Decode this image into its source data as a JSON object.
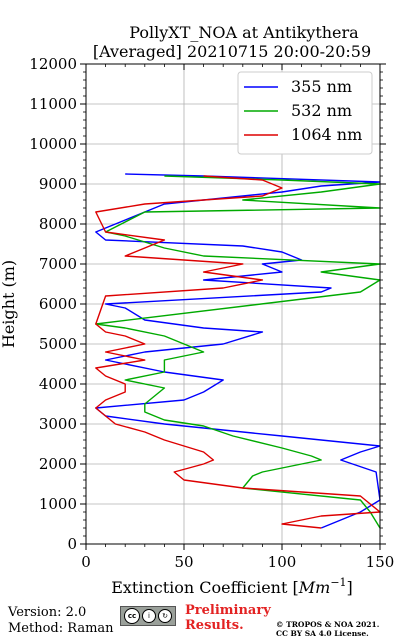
{
  "chart_data": {
    "type": "line",
    "title_line1": "PollyXT_NOA at Antikythera",
    "title_line2": "[Averaged] 20210715 20:00-20:59",
    "xlabel": "Extinction Coefficient [",
    "xlabel_unit_base": "Mm",
    "xlabel_unit_exp": "−1",
    "xlabel_close": "]",
    "ylabel": "Height (m)",
    "xlim": [
      0,
      150
    ],
    "ylim": [
      0,
      12000
    ],
    "x_ticks": [
      0,
      50,
      100,
      150
    ],
    "x_tick_labels": [
      "0",
      "50",
      "100",
      "150"
    ],
    "y_ticks": [
      0,
      1000,
      2000,
      3000,
      4000,
      5000,
      6000,
      7000,
      8000,
      9000,
      10000,
      11000,
      12000
    ],
    "y_tick_labels": [
      "0",
      "1000",
      "2000",
      "3000",
      "4000",
      "5000",
      "6000",
      "7000",
      "8000",
      "9000",
      "10000",
      "11000",
      "12000"
    ],
    "grid": true,
    "legend_position": "top-right",
    "series": [
      {
        "name": "355 nm",
        "color": "#0000ff",
        "points": [
          [
            120,
            400
          ],
          [
            140,
            800
          ],
          [
            150,
            1100
          ],
          [
            148,
            1800
          ],
          [
            130,
            2100
          ],
          [
            140,
            2300
          ],
          [
            150,
            2450
          ],
          [
            100,
            2700
          ],
          [
            70,
            2850
          ],
          [
            40,
            3000
          ],
          [
            10,
            3200
          ],
          [
            5,
            3400
          ],
          [
            50,
            3600
          ],
          [
            60,
            3800
          ],
          [
            70,
            4100
          ],
          [
            40,
            4300
          ],
          [
            10,
            4600
          ],
          [
            30,
            4800
          ],
          [
            70,
            5000
          ],
          [
            90,
            5300
          ],
          [
            60,
            5400
          ],
          [
            30,
            5600
          ],
          [
            20,
            5900
          ],
          [
            10,
            6000
          ],
          [
            120,
            6300
          ],
          [
            125,
            6400
          ],
          [
            60,
            6600
          ],
          [
            100,
            6800
          ],
          [
            90,
            7000
          ],
          [
            110,
            7100
          ],
          [
            100,
            7300
          ],
          [
            80,
            7450
          ],
          [
            10,
            7600
          ],
          [
            5,
            7800
          ],
          [
            40,
            8500
          ],
          [
            100,
            8800
          ],
          [
            120,
            8950
          ],
          [
            150,
            9050
          ],
          [
            60,
            9200
          ],
          [
            20,
            9250
          ]
        ]
      },
      {
        "name": "532 nm",
        "color": "#00aa00",
        "points": [
          [
            150,
            400
          ],
          [
            145,
            800
          ],
          [
            140,
            1100
          ],
          [
            80,
            1400
          ],
          [
            85,
            1700
          ],
          [
            90,
            1800
          ],
          [
            110,
            2000
          ],
          [
            120,
            2100
          ],
          [
            115,
            2200
          ],
          [
            100,
            2400
          ],
          [
            75,
            2700
          ],
          [
            60,
            2950
          ],
          [
            40,
            3100
          ],
          [
            30,
            3300
          ],
          [
            30,
            3500
          ],
          [
            35,
            3700
          ],
          [
            40,
            3900
          ],
          [
            20,
            4100
          ],
          [
            40,
            4300
          ],
          [
            40,
            4600
          ],
          [
            60,
            4800
          ],
          [
            50,
            5000
          ],
          [
            40,
            5200
          ],
          [
            20,
            5400
          ],
          [
            5,
            5500
          ],
          [
            140,
            6300
          ],
          [
            150,
            6600
          ],
          [
            120,
            6800
          ],
          [
            150,
            7000
          ],
          [
            60,
            7200
          ],
          [
            40,
            7400
          ],
          [
            20,
            7700
          ],
          [
            10,
            7800
          ],
          [
            30,
            8300
          ],
          [
            150,
            8400
          ],
          [
            80,
            8600
          ],
          [
            120,
            8800
          ],
          [
            150,
            9000
          ],
          [
            100,
            9100
          ],
          [
            40,
            9200
          ]
        ]
      },
      {
        "name": "1064 nm",
        "color": "#dd0000",
        "points": [
          [
            120,
            400
          ],
          [
            100,
            500
          ],
          [
            120,
            700
          ],
          [
            150,
            800
          ],
          [
            140,
            1200
          ],
          [
            80,
            1400
          ],
          [
            50,
            1600
          ],
          [
            45,
            1800
          ],
          [
            60,
            2000
          ],
          [
            65,
            2100
          ],
          [
            60,
            2300
          ],
          [
            40,
            2600
          ],
          [
            30,
            2800
          ],
          [
            15,
            3000
          ],
          [
            10,
            3200
          ],
          [
            5,
            3400
          ],
          [
            10,
            3600
          ],
          [
            20,
            3800
          ],
          [
            20,
            4000
          ],
          [
            10,
            4200
          ],
          [
            5,
            4400
          ],
          [
            30,
            4600
          ],
          [
            10,
            4800
          ],
          [
            30,
            5000
          ],
          [
            20,
            5200
          ],
          [
            10,
            5300
          ],
          [
            5,
            5500
          ],
          [
            10,
            6200
          ],
          [
            70,
            6400
          ],
          [
            90,
            6600
          ],
          [
            60,
            6800
          ],
          [
            80,
            7000
          ],
          [
            20,
            7200
          ],
          [
            40,
            7600
          ],
          [
            10,
            7800
          ],
          [
            5,
            8300
          ],
          [
            30,
            8500
          ],
          [
            90,
            8700
          ],
          [
            100,
            8900
          ],
          [
            90,
            9100
          ],
          [
            60,
            9200
          ]
        ]
      }
    ]
  },
  "footer": {
    "version": "Version: 2.0",
    "method": "Method: Raman",
    "preliminary_line1": "Preliminary",
    "preliminary_line2": "Results.",
    "copyright_line1": "© TROPOS & NOA 2021.",
    "copyright_line2": "CC BY SA 4.0 License."
  }
}
